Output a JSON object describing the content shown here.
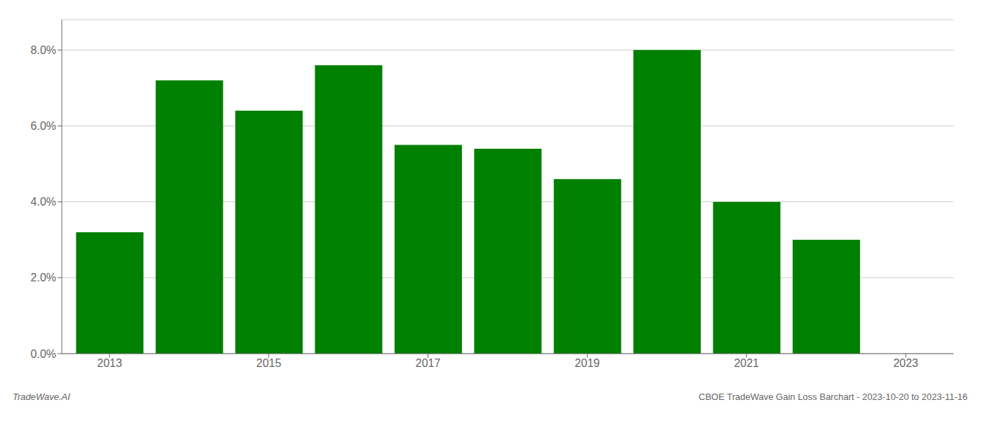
{
  "chart_data": {
    "type": "bar",
    "x": [
      2013,
      2014,
      2015,
      2016,
      2017,
      2018,
      2019,
      2020,
      2021,
      2022
    ],
    "values": [
      0.032,
      0.072,
      0.064,
      0.076,
      0.055,
      0.054,
      0.046,
      0.08,
      0.04,
      0.03
    ],
    "color": "#008000",
    "xlim": [
      2012.4,
      2023.6
    ],
    "xticks": [
      2013,
      2015,
      2017,
      2019,
      2021,
      2023
    ],
    "ylim": [
      0,
      0.088
    ],
    "yticks": [
      {
        "value": 0.0,
        "label": "0.0%"
      },
      {
        "value": 0.02,
        "label": "2.0%"
      },
      {
        "value": 0.04,
        "label": "4.0%"
      },
      {
        "value": 0.06,
        "label": "6.0%"
      },
      {
        "value": 0.08,
        "label": "8.0%"
      }
    ],
    "grid": true,
    "annotations": [
      "TradeWave.AI",
      "CBOE TradeWave Gain Loss Barchart - 2023-10-20 to 2023-11-16"
    ]
  }
}
